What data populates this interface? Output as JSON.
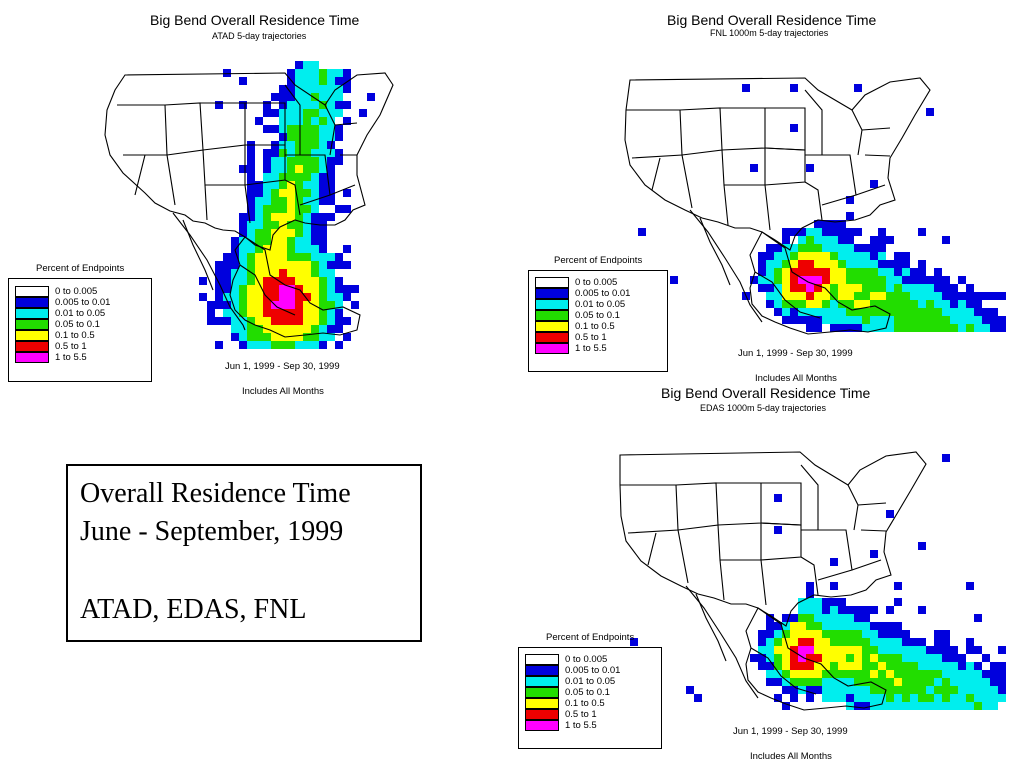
{
  "colors": {
    "bin0": "#ffffff",
    "bin1": "#0000dd",
    "bin2": "#00eeee",
    "bin3": "#22dd00",
    "bin4": "#ffff00",
    "bin5": "#ee0000",
    "bin6": "#ff00ff"
  },
  "legend": {
    "title": "Percent of Endpoints",
    "items": [
      {
        "label": "0 to 0.005",
        "color": "#ffffff"
      },
      {
        "label": "0.005 to 0.01",
        "color": "#0000dd"
      },
      {
        "label": "0.01 to 0.05",
        "color": "#00eeee"
      },
      {
        "label": "0.05 to 0.1",
        "color": "#22dd00"
      },
      {
        "label": "0.1 to 0.5",
        "color": "#ffff00"
      },
      {
        "label": "0.5 to 1",
        "color": "#ee0000"
      },
      {
        "label": "1 to 5.5",
        "color": "#ff00ff"
      }
    ]
  },
  "panels": {
    "atad": {
      "title": "Big Bend Overall Residence Time",
      "subtitle": "ATAD 5-day trajectories",
      "date_range": "Jun 1, 1999 - Sep 30, 1999",
      "months_note": "Includes All Months"
    },
    "fnl": {
      "title": "Big Bend Overall Residence Time",
      "subtitle": "FNL 1000m 5-day trajectories",
      "date_range": "Jun 1, 1999 - Sep 30, 1999",
      "months_note": "Includes All Months"
    },
    "edas": {
      "title": "Big Bend Overall Residence Time",
      "subtitle": "EDAS 1000m 5-day trajectories",
      "date_range": "Jun 1, 1999 - Sep 30, 1999",
      "months_note": "Includes All Months"
    }
  },
  "summary_box": {
    "line1": "Overall Residence Time",
    "line2": "June - September, 1999",
    "line3": "ATAD, EDAS, FNL"
  }
}
